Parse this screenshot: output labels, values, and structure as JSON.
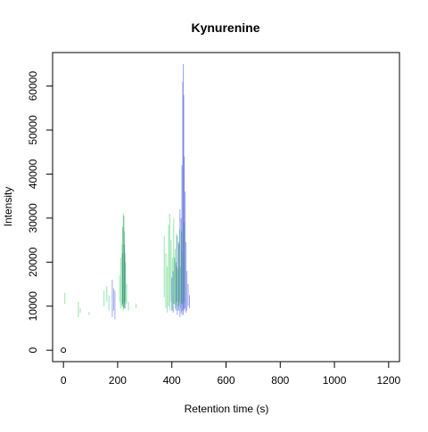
{
  "chart_data": {
    "type": "scatter",
    "title": "Kynurenine",
    "xlabel": "Retention time (s)",
    "ylabel": "Intensity",
    "xlim": [
      -40,
      1240
    ],
    "ylim": [
      -2600,
      67600
    ],
    "xticks": [
      0,
      200,
      400,
      600,
      800,
      1000,
      1200
    ],
    "yticks": [
      0,
      10000,
      20000,
      30000,
      40000,
      50000,
      60000
    ],
    "grid": false,
    "legend": "none",
    "colors": {
      "blue": "#4a5fe0",
      "green": "#3fd06a",
      "darkgreen": "#1a8f4a"
    },
    "point": {
      "x": 0,
      "y": 0,
      "shape": "open-circle"
    },
    "series": [
      {
        "color": "green",
        "bars": [
          [
            5,
            10500,
            13000
          ],
          [
            55,
            7500,
            11000
          ],
          [
            62,
            8500,
            9500
          ],
          [
            95,
            8000,
            8700
          ],
          [
            150,
            10000,
            13500
          ],
          [
            160,
            11000,
            14500
          ],
          [
            168,
            9000,
            12500
          ],
          [
            207,
            11000,
            17000
          ],
          [
            212,
            9500,
            21000
          ],
          [
            216,
            10000,
            24000
          ],
          [
            221,
            9000,
            31000
          ],
          [
            225,
            10500,
            27000
          ],
          [
            229,
            9500,
            20000
          ],
          [
            233,
            10500,
            15000
          ],
          [
            240,
            9000,
            11000
          ],
          [
            268,
            9500,
            10500
          ],
          [
            372,
            12000,
            26000
          ],
          [
            378,
            9500,
            22000
          ],
          [
            383,
            8500,
            19000
          ],
          [
            388,
            10000,
            28500
          ],
          [
            392,
            9000,
            31000
          ],
          [
            397,
            11000,
            25000
          ],
          [
            402,
            9000,
            21000
          ],
          [
            407,
            10500,
            30000
          ],
          [
            412,
            9500,
            23000
          ],
          [
            417,
            10000,
            26500
          ],
          [
            423,
            9000,
            18500
          ],
          [
            428,
            11000,
            27500
          ],
          [
            432,
            9500,
            19000
          ],
          [
            438,
            10500,
            22500
          ]
        ]
      },
      {
        "color": "blue",
        "bars": [
          [
            180,
            7500,
            16000
          ],
          [
            185,
            9000,
            14000
          ],
          [
            190,
            7000,
            13500
          ],
          [
            218,
            10500,
            22000
          ],
          [
            226,
            9500,
            24000
          ],
          [
            400,
            9000,
            16500
          ],
          [
            405,
            8500,
            18000
          ],
          [
            415,
            9000,
            20000
          ],
          [
            420,
            8000,
            26000
          ],
          [
            425,
            9000,
            24500
          ],
          [
            430,
            7500,
            32000
          ],
          [
            434,
            8500,
            30000
          ],
          [
            437,
            8000,
            42000
          ],
          [
            440,
            9000,
            61000
          ],
          [
            442,
            8000,
            65000
          ],
          [
            444,
            9500,
            58000
          ],
          [
            446,
            9000,
            44000
          ],
          [
            449,
            9500,
            36000
          ],
          [
            452,
            8500,
            24500
          ],
          [
            456,
            9000,
            18000
          ],
          [
            460,
            10000,
            15000
          ],
          [
            465,
            9500,
            12500
          ]
        ]
      },
      {
        "color": "darkgreen",
        "bars": [
          [
            219,
            10000,
            28000
          ],
          [
            223,
            9500,
            30500
          ],
          [
            227,
            11000,
            22000
          ],
          [
            410,
            10500,
            21000
          ],
          [
            418,
            11000,
            19000
          ],
          [
            426,
            10000,
            24000
          ],
          [
            436,
            10500,
            27000
          ],
          [
            445,
            11000,
            29000
          ]
        ]
      }
    ]
  }
}
